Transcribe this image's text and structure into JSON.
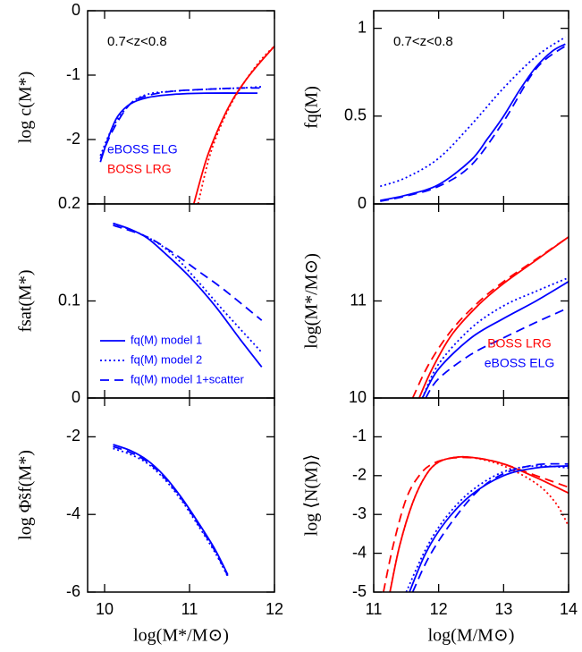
{
  "chart_data": [
    {
      "type": "line",
      "ylabel": "log c(M*)",
      "annotation": "0.7<z<0.8",
      "xlim": [
        9.8,
        12.0
      ],
      "xticks": [
        10,
        11,
        12
      ],
      "xtick_labels": false,
      "ylim": [
        -3,
        0
      ],
      "yticks": [
        0,
        -1,
        -2
      ],
      "legend_loc": "lower left",
      "legend": [
        {
          "label": "eBOSS ELG",
          "color": "#0000ff"
        },
        {
          "label": "BOSS LRG",
          "color": "#ff0000"
        }
      ],
      "series": [
        {
          "color": "#0000ff",
          "style": "solid",
          "x": [
            9.95,
            10.05,
            10.15,
            10.3,
            10.5,
            10.8,
            11.2,
            11.8
          ],
          "values": [
            -2.35,
            -1.95,
            -1.65,
            -1.45,
            -1.35,
            -1.3,
            -1.28,
            -1.28
          ]
        },
        {
          "color": "#0000ff",
          "style": "dotted",
          "x": [
            9.95,
            10.1,
            10.3,
            10.5,
            10.8,
            11.2,
            11.6,
            11.85
          ],
          "values": [
            -2.25,
            -1.8,
            -1.45,
            -1.3,
            -1.25,
            -1.22,
            -1.2,
            -1.18
          ]
        },
        {
          "color": "#0000ff",
          "style": "dashed",
          "x": [
            9.95,
            10.1,
            10.3,
            10.5,
            10.8,
            11.2,
            11.6,
            11.85
          ],
          "values": [
            -2.3,
            -1.85,
            -1.45,
            -1.32,
            -1.25,
            -1.22,
            -1.2,
            -1.2
          ]
        },
        {
          "color": "#ff0000",
          "style": "solid",
          "x": [
            11.05,
            11.2,
            11.35,
            11.5,
            11.65,
            11.8,
            12.0
          ],
          "values": [
            -3,
            -2.3,
            -1.8,
            -1.4,
            -1.1,
            -0.85,
            -0.55
          ]
        },
        {
          "color": "#ff0000",
          "style": "dotted",
          "x": [
            11.1,
            11.25,
            11.45,
            11.65,
            11.85,
            12.0
          ],
          "values": [
            -3,
            -2.2,
            -1.55,
            -1.1,
            -0.75,
            -0.55
          ]
        }
      ]
    },
    {
      "type": "line",
      "ylabel": "fq(M)",
      "annotation": "0.7<z<0.8",
      "xlim": [
        11,
        14
      ],
      "xticks": [
        11,
        12,
        13,
        14
      ],
      "xtick_labels": false,
      "ylim": [
        0,
        1.1
      ],
      "yticks": [
        0,
        0.5,
        1
      ],
      "series": [
        {
          "color": "#0000ff",
          "style": "solid",
          "x": [
            11.1,
            11.5,
            12,
            12.5,
            12.75,
            13,
            13.25,
            13.5,
            13.75,
            13.95
          ],
          "values": [
            0.02,
            0.05,
            0.11,
            0.25,
            0.37,
            0.5,
            0.65,
            0.78,
            0.87,
            0.91
          ]
        },
        {
          "color": "#0000ff",
          "style": "dashed",
          "x": [
            11.1,
            11.5,
            12,
            12.5,
            13,
            13.5,
            13.95
          ],
          "values": [
            0.015,
            0.045,
            0.1,
            0.22,
            0.47,
            0.77,
            0.9
          ]
        },
        {
          "color": "#0000ff",
          "style": "dotted",
          "x": [
            11.1,
            11.5,
            12,
            12.5,
            13,
            13.5,
            13.95
          ],
          "values": [
            0.1,
            0.15,
            0.26,
            0.45,
            0.66,
            0.84,
            0.95
          ]
        }
      ]
    },
    {
      "type": "line",
      "ylabel": "fsat(M*)",
      "xlim": [
        9.8,
        12.0
      ],
      "xticks": [
        10,
        11,
        12
      ],
      "xtick_labels": false,
      "ylim": [
        0,
        0.2
      ],
      "yticks": [
        0,
        0.1,
        0.2
      ],
      "legend_loc": "lower left",
      "legend": [
        {
          "label": "fq(M) model 1",
          "color": "#0000ff",
          "style": "solid"
        },
        {
          "label": "fq(M) model 2",
          "color": "#0000ff",
          "style": "dotted"
        },
        {
          "label": "fq(M) model 1+scatter",
          "color": "#0000ff",
          "style": "dashed"
        }
      ],
      "series": [
        {
          "color": "#0000ff",
          "style": "solid",
          "x": [
            10.1,
            10.3,
            10.5,
            10.7,
            11.0,
            11.3,
            11.6,
            11.85
          ],
          "values": [
            0.18,
            0.174,
            0.165,
            0.15,
            0.125,
            0.095,
            0.06,
            0.032
          ]
        },
        {
          "color": "#0000ff",
          "style": "dotted",
          "x": [
            10.1,
            10.5,
            10.8,
            11.1,
            11.4,
            11.85
          ],
          "values": [
            0.18,
            0.166,
            0.148,
            0.12,
            0.09,
            0.047
          ]
        },
        {
          "color": "#0000ff",
          "style": "dashed",
          "x": [
            10.1,
            10.5,
            10.8,
            11.1,
            11.4,
            11.85
          ],
          "values": [
            0.178,
            0.166,
            0.15,
            0.131,
            0.112,
            0.08
          ]
        }
      ]
    },
    {
      "type": "line",
      "ylabel": "log(M*/M⊙)",
      "xlim": [
        11,
        14
      ],
      "xticks": [
        11,
        12,
        13,
        14
      ],
      "xtick_labels": false,
      "ylim": [
        10,
        12
      ],
      "yticks": [
        10,
        11
      ],
      "legend_loc": "lower right",
      "legend": [
        {
          "label": "BOSS LRG",
          "color": "#ff0000"
        },
        {
          "label": "eBOSS ELG",
          "color": "#0000ff"
        }
      ],
      "series": [
        {
          "color": "#ff0000",
          "style": "solid",
          "x": [
            11.7,
            11.9,
            12.2,
            12.6,
            13,
            13.5,
            14
          ],
          "values": [
            10,
            10.3,
            10.65,
            10.95,
            11.18,
            11.42,
            11.66
          ]
        },
        {
          "color": "#ff0000",
          "style": "dashed",
          "x": [
            11.6,
            11.85,
            12.2,
            12.6,
            13,
            13.5,
            14
          ],
          "values": [
            10,
            10.35,
            10.7,
            10.98,
            11.2,
            11.43,
            11.66
          ]
        },
        {
          "color": "#0000ff",
          "style": "solid",
          "x": [
            11.75,
            12,
            12.5,
            13,
            13.5,
            14
          ],
          "values": [
            10,
            10.3,
            10.62,
            10.82,
            11.0,
            11.2
          ]
        },
        {
          "color": "#0000ff",
          "style": "dotted",
          "x": [
            11.75,
            12,
            12.5,
            13,
            13.5,
            14
          ],
          "values": [
            10,
            10.35,
            10.72,
            10.95,
            11.1,
            11.24
          ]
        },
        {
          "color": "#0000ff",
          "style": "dashed",
          "x": [
            11.8,
            12,
            12.5,
            13,
            13.5,
            14
          ],
          "values": [
            10,
            10.2,
            10.45,
            10.62,
            10.78,
            10.93
          ]
        }
      ]
    },
    {
      "type": "line",
      "ylabel": "log Φ̃sf(M*)",
      "xlabel": "log(M*/M⊙)",
      "xlim": [
        9.8,
        12.0
      ],
      "xticks": [
        10,
        11,
        12
      ],
      "xtick_labels": true,
      "ylim": [
        -6,
        -1
      ],
      "yticks": [
        -6,
        -4,
        -2
      ],
      "series": [
        {
          "color": "#0000ff",
          "style": "solid",
          "x": [
            10.1,
            10.3,
            10.5,
            10.7,
            10.9,
            11.1,
            11.3,
            11.45
          ],
          "values": [
            -2.2,
            -2.35,
            -2.6,
            -3.0,
            -3.55,
            -4.2,
            -4.9,
            -5.55
          ]
        },
        {
          "color": "#0000ff",
          "style": "dotted",
          "x": [
            10.1,
            10.3,
            10.5,
            10.7,
            10.9,
            11.1,
            11.3,
            11.45
          ],
          "values": [
            -2.3,
            -2.45,
            -2.68,
            -3.08,
            -3.62,
            -4.28,
            -4.98,
            -5.6
          ]
        },
        {
          "color": "#0000ff",
          "style": "dashed",
          "x": [
            10.1,
            10.3,
            10.5,
            10.7,
            10.9,
            11.1,
            11.3,
            11.45
          ],
          "values": [
            -2.25,
            -2.4,
            -2.64,
            -3.04,
            -3.58,
            -4.24,
            -4.94,
            -5.58
          ]
        }
      ]
    },
    {
      "type": "line",
      "ylabel": "log ⟨N(M)⟩",
      "xlabel": "log(M/M⊙)",
      "xlim": [
        11,
        14
      ],
      "xticks": [
        11,
        12,
        13,
        14
      ],
      "xtick_labels": true,
      "ylim": [
        -5,
        0
      ],
      "yticks": [
        -5,
        -4,
        -3,
        -2,
        -1
      ],
      "series": [
        {
          "color": "#ff0000",
          "style": "solid",
          "x": [
            11.25,
            11.4,
            11.6,
            11.8,
            12.0,
            12.3,
            12.6,
            13,
            13.5,
            14
          ],
          "values": [
            -5,
            -3.8,
            -2.7,
            -2.0,
            -1.65,
            -1.52,
            -1.55,
            -1.7,
            -2.05,
            -2.45
          ]
        },
        {
          "color": "#ff0000",
          "style": "dashed",
          "x": [
            11.15,
            11.3,
            11.5,
            11.7,
            11.9,
            12.2,
            12.6,
            13,
            13.5,
            14
          ],
          "values": [
            -5,
            -3.8,
            -2.6,
            -2.0,
            -1.7,
            -1.55,
            -1.55,
            -1.7,
            -2.0,
            -2.3
          ]
        },
        {
          "color": "#ff0000",
          "style": "dotted",
          "x": [
            11.25,
            11.4,
            11.6,
            11.8,
            12.0,
            12.3,
            12.6,
            13,
            13.5,
            13.8,
            14
          ],
          "values": [
            -5,
            -3.8,
            -2.7,
            -2.0,
            -1.65,
            -1.52,
            -1.56,
            -1.75,
            -2.2,
            -2.7,
            -3.3
          ]
        },
        {
          "color": "#0000ff",
          "style": "solid",
          "x": [
            11.55,
            11.8,
            12.1,
            12.5,
            13,
            13.5,
            14
          ],
          "values": [
            -5,
            -4,
            -3.2,
            -2.5,
            -2.0,
            -1.8,
            -1.75
          ]
        },
        {
          "color": "#0000ff",
          "style": "dashed",
          "x": [
            11.6,
            11.85,
            12.2,
            12.6,
            13,
            13.5,
            14
          ],
          "values": [
            -5,
            -4.1,
            -3.2,
            -2.4,
            -1.95,
            -1.72,
            -1.7
          ]
        },
        {
          "color": "#0000ff",
          "style": "dotted",
          "x": [
            11.5,
            11.8,
            12.1,
            12.5,
            13,
            13.5,
            14
          ],
          "values": [
            -5,
            -3.9,
            -3.1,
            -2.4,
            -1.9,
            -1.75,
            -1.8
          ]
        }
      ]
    }
  ]
}
